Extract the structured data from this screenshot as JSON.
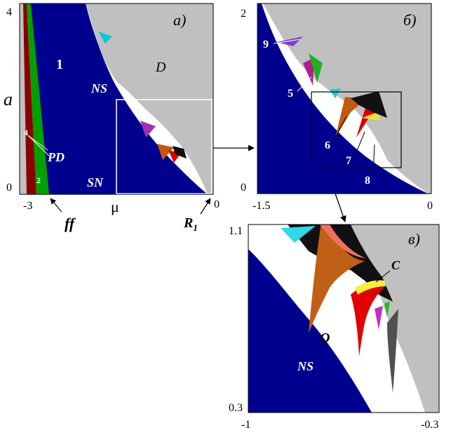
{
  "panel_a": {
    "tag": "а)",
    "y_axis": {
      "label": "a",
      "top": "4",
      "bottom": "0"
    },
    "x_axis": {
      "left": "-3",
      "right": "0"
    },
    "regions": {
      "one": "1",
      "d": "D",
      "ns": "NS",
      "pd": "PD",
      "sn": "SN",
      "four": "4",
      "two": "2"
    },
    "below": {
      "ff": "ff",
      "mu": "μ",
      "r1": "R",
      "r1_sub": "1"
    },
    "colors": {
      "blue": "#00008e",
      "green": "#00a000",
      "darkred": "#8a0000",
      "gray": "#c0c0c0"
    }
  },
  "panel_b": {
    "tag": "б)",
    "y_axis": {
      "top": "2",
      "bottom": "0"
    },
    "x_axis": {
      "left": "-1.5",
      "right": "0"
    },
    "labels": {
      "n9": "9",
      "n5": "5",
      "n6": "6",
      "n7": "7",
      "n8": "8"
    }
  },
  "panel_c": {
    "tag": "в)",
    "y_axis": {
      "top": "1.1",
      "bottom": "0.3"
    },
    "x_axis": {
      "left": "-1",
      "right": "-0.3"
    },
    "labels": {
      "c": "C",
      "q": "Q",
      "ns": "NS"
    }
  }
}
